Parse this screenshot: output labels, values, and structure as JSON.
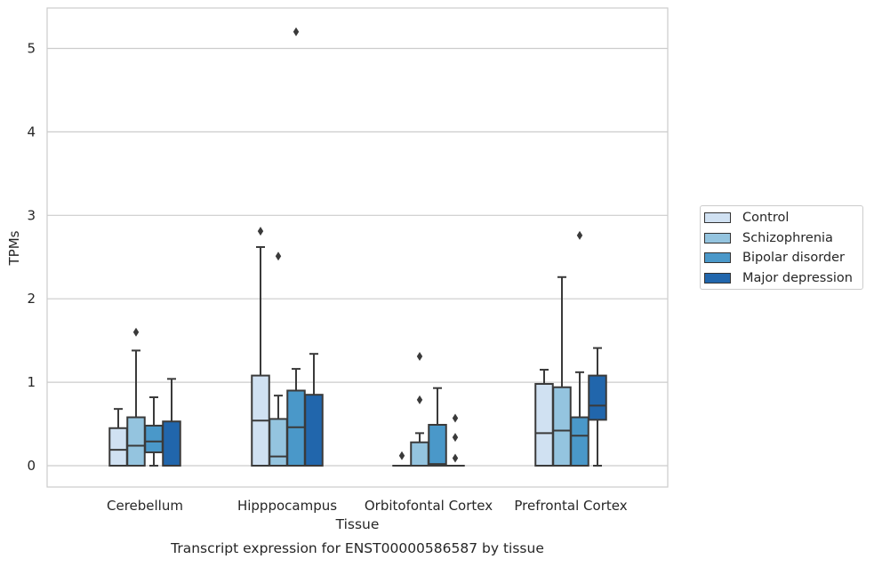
{
  "chart_data": {
    "type": "box",
    "title": "Transcript expression for ENST00000586587 by tissue",
    "xlabel": "Tissue",
    "ylabel": "TPMs",
    "ylim": [
      -0.25,
      5.48
    ],
    "yticks": [
      0,
      1,
      2,
      3,
      4,
      5
    ],
    "categories": [
      "Cerebellum",
      "Hipppocampus",
      "Orbitofontal Cortex",
      "Prefrontal Cortex"
    ],
    "grid": "horizontal",
    "legend_position": "right",
    "series": [
      {
        "name": "Control",
        "color": "#d0e1f2",
        "boxes": [
          {
            "whislo": 0.0,
            "q1": 0.0,
            "med": 0.19,
            "q3": 0.45,
            "whishi": 0.68,
            "fliers": []
          },
          {
            "whislo": 0.0,
            "q1": 0.0,
            "med": 0.54,
            "q3": 1.08,
            "whishi": 2.62,
            "fliers": [
              2.81
            ]
          },
          {
            "whislo": 0.0,
            "q1": 0.0,
            "med": 0.0,
            "q3": 0.0,
            "whishi": 0.0,
            "fliers": [
              0.12
            ]
          },
          {
            "whislo": 0.0,
            "q1": 0.0,
            "med": 0.39,
            "q3": 0.98,
            "whishi": 1.15,
            "fliers": []
          }
        ]
      },
      {
        "name": "Schizophrenia",
        "color": "#94c4df",
        "boxes": [
          {
            "whislo": 0.0,
            "q1": 0.0,
            "med": 0.24,
            "q3": 0.58,
            "whishi": 1.38,
            "fliers": [
              1.6
            ]
          },
          {
            "whislo": 0.0,
            "q1": 0.0,
            "med": 0.11,
            "q3": 0.56,
            "whishi": 0.84,
            "fliers": [
              2.51
            ]
          },
          {
            "whislo": 0.0,
            "q1": 0.0,
            "med": 0.0,
            "q3": 0.28,
            "whishi": 0.39,
            "fliers": [
              0.79,
              1.31
            ]
          },
          {
            "whislo": 0.0,
            "q1": 0.0,
            "med": 0.42,
            "q3": 0.94,
            "whishi": 2.26,
            "fliers": []
          }
        ]
      },
      {
        "name": "Bipolar disorder",
        "color": "#4a98c9",
        "boxes": [
          {
            "whislo": 0.0,
            "q1": 0.16,
            "med": 0.29,
            "q3": 0.48,
            "whishi": 0.82,
            "fliers": []
          },
          {
            "whislo": 0.0,
            "q1": 0.0,
            "med": 0.46,
            "q3": 0.9,
            "whishi": 1.16,
            "fliers": [
              5.2
            ]
          },
          {
            "whislo": 0.0,
            "q1": 0.0,
            "med": 0.02,
            "q3": 0.49,
            "whishi": 0.93,
            "fliers": []
          },
          {
            "whislo": 0.0,
            "q1": 0.0,
            "med": 0.36,
            "q3": 0.58,
            "whishi": 1.12,
            "fliers": [
              2.76
            ]
          }
        ]
      },
      {
        "name": "Major depression",
        "color": "#2166ac",
        "boxes": [
          {
            "whislo": 0.0,
            "q1": 0.0,
            "med": 0.0,
            "q3": 0.53,
            "whishi": 1.04,
            "fliers": []
          },
          {
            "whislo": 0.0,
            "q1": 0.0,
            "med": 0.0,
            "q3": 0.85,
            "whishi": 1.34,
            "fliers": []
          },
          {
            "whislo": 0.0,
            "q1": 0.0,
            "med": 0.0,
            "q3": 0.0,
            "whishi": 0.0,
            "fliers": [
              0.09,
              0.34,
              0.57
            ]
          },
          {
            "whislo": 0.0,
            "q1": 0.55,
            "med": 0.72,
            "q3": 1.08,
            "whishi": 1.41,
            "fliers": []
          }
        ]
      }
    ]
  }
}
